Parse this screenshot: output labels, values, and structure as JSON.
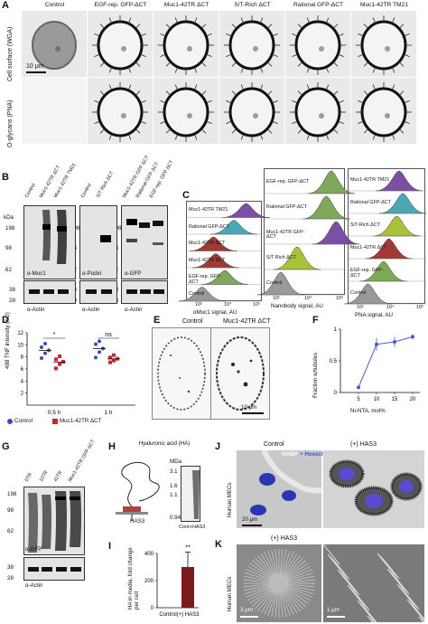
{
  "panelA": {
    "letter": "A",
    "columns": [
      "Control",
      "EGF-rep. GFP-ΔCT",
      "Muc1-42TR ΔCT",
      "S/T-Rich ΔCT",
      "Rational GFP-ΔCT",
      "Muc1-42TR TM21"
    ],
    "row1": "Cell surface (WGA)",
    "row2": "O-glycans (PNA)",
    "scalebar": "10 μm"
  },
  "panelB": {
    "letter": "B",
    "lanes1": [
      "Control",
      "Muc1-42TR ΔCT",
      "Muc1-42TR TM21"
    ],
    "lanes2": [
      "Control",
      "S/T Rich ΔCT"
    ],
    "lanes3": [
      "Muc1-42TR GFP ΔCT",
      "Rational GFP ΔCT",
      "EGF-rep. GFP ΔCT"
    ],
    "kda": "kDa",
    "mw_top": [
      "198",
      "98",
      "62"
    ],
    "mw_bottom": [
      "38",
      "28"
    ],
    "ab1": "α-Muc1",
    "ab2": "α-Podxl",
    "ab3": "α-GFP",
    "actin": "α-Actin"
  },
  "panelC": {
    "letter": "C",
    "col1": {
      "rows": [
        "Muc1-42TR TM21",
        "Rational GFP-ΔCT",
        "Muc1-42TR ΔCT",
        "Muc1-42TR ΔCT",
        "EGF-rep. GFP-ΔCT",
        "Control"
      ],
      "xlabel": "αMuc1 signal, AU"
    },
    "col2": {
      "rows": [
        "EGF-rep. GFP-ΔCT",
        "Rational GFP-ΔCT",
        "Muc1-42TR GFP-ΔCT",
        "S/T Rich ΔCT",
        "Control"
      ],
      "xlabel": "Nanobody signal, AU"
    },
    "col3": {
      "rows": [
        "Muc1-42TR TM21",
        "Rational GFP-ΔCT",
        "S/T-Rich ΔCT",
        "Muc1-42TR ΔCT",
        "EGF-rep. GFP-ΔCT",
        "Control"
      ],
      "xlabel": "PNA signal, AU"
    },
    "ticks": [
      "10²",
      "10⁴",
      "10⁵"
    ]
  },
  "panelD": {
    "letter": "D",
    "ylabel": "488 TNF intensity (AU)",
    "yticks": [
      "2",
      "4",
      "6",
      "8",
      "10",
      "12"
    ],
    "groups": [
      "0.5 h",
      "1 h"
    ],
    "sig": [
      "*",
      "ns"
    ],
    "legend": [
      "Control",
      "Muc1-42TR ΔCT"
    ]
  },
  "panelE": {
    "letter": "E",
    "titles": [
      "Control",
      "Muc1-42TR ΔCT"
    ],
    "scalebar": "10 μm"
  },
  "panelF": {
    "letter": "F",
    "ylabel": "Fraction w/tubules",
    "xlabel": "Ni-NTA, mol%",
    "xticks": [
      "5",
      "10",
      "15",
      "20"
    ],
    "yticks": [
      "0",
      "0.5",
      "1"
    ]
  },
  "panelG": {
    "letter": "G",
    "lanes": [
      "0TR",
      "10TR",
      "42TR",
      "Muc1-42TR GFP ΔCT"
    ],
    "mw": [
      "198",
      "98",
      "62",
      "38",
      "28"
    ],
    "ab1": "α-GFP",
    "ab2": "α-Actin"
  },
  "panelH": {
    "letter": "H",
    "title": "Hyaluronic acid (HA)",
    "enzyme": "HAS3",
    "mda": "MDa",
    "mw": [
      "3.1",
      "1.6",
      "1.1",
      "0.94"
    ],
    "lanes": [
      "Cont.",
      "+HAS3"
    ]
  },
  "panelI": {
    "letter": "I",
    "ylabel": "HA in media, fold change per cell",
    "yticks": [
      "0",
      "200",
      "400"
    ],
    "xticks": [
      "Control",
      "(+) HAS3"
    ],
    "sig": "**"
  },
  "panelJ": {
    "letter": "J",
    "titles": [
      "Control",
      "(+) HAS3"
    ],
    "legend_a": "HABP",
    "legend_b": "+ Hoescht",
    "side": "Human MECs",
    "scalebar": "20 μm"
  },
  "panelK": {
    "letter": "K",
    "title": "(+) HAS3",
    "side": "Human MECs",
    "scale1": "3 μm",
    "scale2": "1 μm"
  },
  "chart_data": [
    {
      "type": "scatter",
      "panel": "D",
      "ylabel": "488 TNF intensity (AU)",
      "ylim": [
        0,
        12
      ],
      "categories": [
        "0.5 h",
        "1 h"
      ],
      "series": [
        {
          "name": "Control",
          "color": "#3b4bb5",
          "values": [
            [
              7.8,
              8.6,
              9.1,
              9.6,
              10.2
            ],
            [
              7.9,
              8.8,
              9.4,
              10.1,
              10.6
            ]
          ]
        },
        {
          "name": "Muc1-42TR ΔCT",
          "color": "#c8282c",
          "values": [
            [
              6.1,
              6.8,
              7.2,
              7.6,
              8.1
            ],
            [
              7.1,
              7.4,
              7.7,
              7.9,
              8.3
            ]
          ]
        }
      ]
    },
    {
      "type": "line",
      "panel": "F",
      "ylabel": "Fraction w/tubules",
      "xlabel": "Ni-NTA, mol%",
      "xlim": [
        0,
        22
      ],
      "ylim": [
        0,
        1
      ],
      "x": [
        5,
        10,
        15,
        20
      ],
      "values": [
        0.08,
        0.76,
        0.8,
        0.88
      ],
      "errors": [
        0.02,
        0.1,
        0.08,
        0.04
      ]
    },
    {
      "type": "bar",
      "panel": "I",
      "ylabel": "HA in media, fold change per cell",
      "ylim": [
        0,
        400
      ],
      "categories": [
        "Control",
        "(+) HAS3"
      ],
      "values": [
        1,
        300
      ],
      "errors": [
        0,
        110
      ]
    }
  ]
}
